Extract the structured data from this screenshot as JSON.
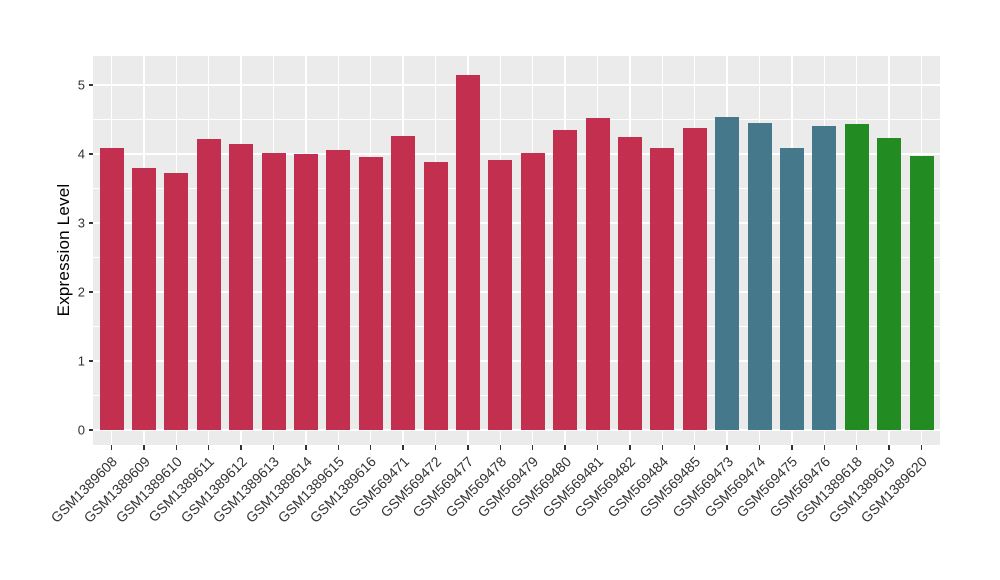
{
  "theme": {
    "figure_bg": "#FFFFFF",
    "panel_bg": "#EBEBEB",
    "grid_color": "#FFFFFF",
    "tick_color": "#333333",
    "tick_label_color": "#333333",
    "axis_title_color": "#000000"
  },
  "chart_data": {
    "type": "bar",
    "title": "",
    "xlabel": "",
    "ylabel": "Expression Level",
    "ylim": [
      0,
      5.42
    ],
    "yticks": [
      0,
      1,
      2,
      3,
      4,
      5
    ],
    "grid": "major-and-minor-horizontal, major-vertical-at-categories",
    "legend_position": "none",
    "group_colors": {
      "crimson": "#C3304F",
      "teal": "#45788A",
      "green": "#228B22"
    },
    "bars": [
      {
        "label": "GSM1389608",
        "value": 4.09,
        "group": "crimson"
      },
      {
        "label": "GSM1389609",
        "value": 3.79,
        "group": "crimson"
      },
      {
        "label": "GSM1389610",
        "value": 3.72,
        "group": "crimson"
      },
      {
        "label": "GSM1389611",
        "value": 4.22,
        "group": "crimson"
      },
      {
        "label": "GSM1389612",
        "value": 4.15,
        "group": "crimson"
      },
      {
        "label": "GSM1389613",
        "value": 4.01,
        "group": "crimson"
      },
      {
        "label": "GSM1389614",
        "value": 4.0,
        "group": "crimson"
      },
      {
        "label": "GSM1389615",
        "value": 4.06,
        "group": "crimson"
      },
      {
        "label": "GSM1389616",
        "value": 3.95,
        "group": "crimson"
      },
      {
        "label": "GSM569471",
        "value": 4.26,
        "group": "crimson"
      },
      {
        "label": "GSM569472",
        "value": 3.88,
        "group": "crimson"
      },
      {
        "label": "GSM569477",
        "value": 5.15,
        "group": "crimson"
      },
      {
        "label": "GSM569478",
        "value": 3.91,
        "group": "crimson"
      },
      {
        "label": "GSM569479",
        "value": 4.02,
        "group": "crimson"
      },
      {
        "label": "GSM569480",
        "value": 4.35,
        "group": "crimson"
      },
      {
        "label": "GSM569481",
        "value": 4.52,
        "group": "crimson"
      },
      {
        "label": "GSM569482",
        "value": 4.25,
        "group": "crimson"
      },
      {
        "label": "GSM569484",
        "value": 4.08,
        "group": "crimson"
      },
      {
        "label": "GSM569485",
        "value": 4.37,
        "group": "crimson"
      },
      {
        "label": "GSM569473",
        "value": 4.54,
        "group": "teal"
      },
      {
        "label": "GSM569474",
        "value": 4.45,
        "group": "teal"
      },
      {
        "label": "GSM569475",
        "value": 4.08,
        "group": "teal"
      },
      {
        "label": "GSM569476",
        "value": 4.4,
        "group": "teal"
      },
      {
        "label": "GSM1389618",
        "value": 4.43,
        "group": "green"
      },
      {
        "label": "GSM1389619",
        "value": 4.23,
        "group": "green"
      },
      {
        "label": "GSM1389620",
        "value": 3.97,
        "group": "green"
      }
    ]
  }
}
